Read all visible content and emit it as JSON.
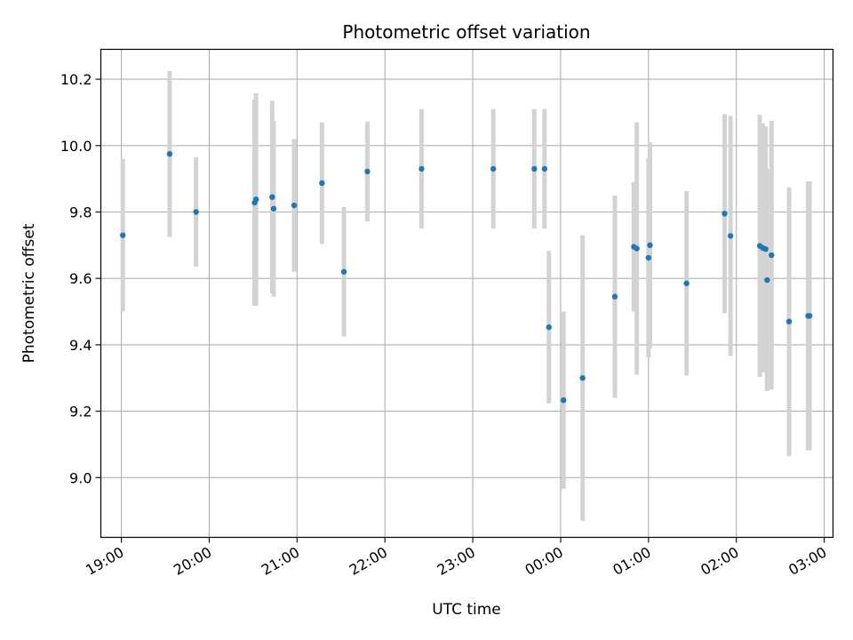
{
  "chart_data": {
    "type": "scatter",
    "title": "Photometric offset variation",
    "xlabel": "UTC time",
    "ylabel": "Photometric offset",
    "grid": true,
    "x_axis": {
      "kind": "time",
      "range": [
        "18:46",
        "03:06"
      ],
      "ticks": [
        "19:00",
        "20:00",
        "21:00",
        "22:00",
        "23:00",
        "00:00",
        "01:00",
        "02:00",
        "03:00"
      ]
    },
    "y_axis": {
      "range": [
        8.82,
        10.29
      ],
      "ticks": [
        "9.0",
        "9.2",
        "9.4",
        "9.6",
        "9.8",
        "10.0",
        "10.2"
      ]
    },
    "colors": {
      "points": "#1f77b4",
      "errorbars": "#d3d3d3",
      "grid": "#b0b0b0"
    },
    "points": [
      {
        "time": "19:01",
        "y": 9.73,
        "err": 0.23
      },
      {
        "time": "19:33",
        "y": 9.975,
        "err": 0.25
      },
      {
        "time": "19:51",
        "y": 9.8,
        "err": 0.165
      },
      {
        "time": "20:31",
        "y": 9.828,
        "err": 0.31
      },
      {
        "time": "20:32",
        "y": 9.838,
        "err": 0.32
      },
      {
        "time": "20:43",
        "y": 9.845,
        "err": 0.29
      },
      {
        "time": "20:44",
        "y": 9.81,
        "err": 0.265
      },
      {
        "time": "20:58",
        "y": 9.82,
        "err": 0.2
      },
      {
        "time": "21:17",
        "y": 9.887,
        "err": 0.183
      },
      {
        "time": "21:32",
        "y": 9.62,
        "err": 0.195
      },
      {
        "time": "21:48",
        "y": 9.922,
        "err": 0.15
      },
      {
        "time": "22:25",
        "y": 9.93,
        "err": 0.18
      },
      {
        "time": "23:14",
        "y": 9.93,
        "err": 0.18
      },
      {
        "time": "23:42",
        "y": 9.93,
        "err": 0.18
      },
      {
        "time": "23:49",
        "y": 9.93,
        "err": 0.18
      },
      {
        "time": "23:52",
        "y": 9.453,
        "err": 0.23
      },
      {
        "time": "00:02",
        "y": 9.233,
        "err": 0.267
      },
      {
        "time": "00:15",
        "y": 9.3,
        "err": 0.43
      },
      {
        "time": "00:37",
        "y": 9.545,
        "err": 0.305
      },
      {
        "time": "00:50",
        "y": 9.695,
        "err": 0.195
      },
      {
        "time": "00:52",
        "y": 9.69,
        "err": 0.38
      },
      {
        "time": "01:00",
        "y": 9.662,
        "err": 0.3
      },
      {
        "time": "01:01",
        "y": 9.7,
        "err": 0.31
      },
      {
        "time": "01:26",
        "y": 9.585,
        "err": 0.278
      },
      {
        "time": "01:52",
        "y": 9.795,
        "err": 0.3
      },
      {
        "time": "01:56",
        "y": 9.728,
        "err": 0.362
      },
      {
        "time": "02:16",
        "y": 9.698,
        "err": 0.395
      },
      {
        "time": "02:18",
        "y": 9.692,
        "err": 0.375
      },
      {
        "time": "02:20",
        "y": 9.688,
        "err": 0.37
      },
      {
        "time": "02:21",
        "y": 9.595,
        "err": 0.335
      },
      {
        "time": "02:24",
        "y": 9.67,
        "err": 0.405
      },
      {
        "time": "02:36",
        "y": 9.47,
        "err": 0.405
      },
      {
        "time": "02:49",
        "y": 9.487,
        "err": 0.405
      },
      {
        "time": "02:50",
        "y": 9.487,
        "err": 0.405
      }
    ]
  }
}
